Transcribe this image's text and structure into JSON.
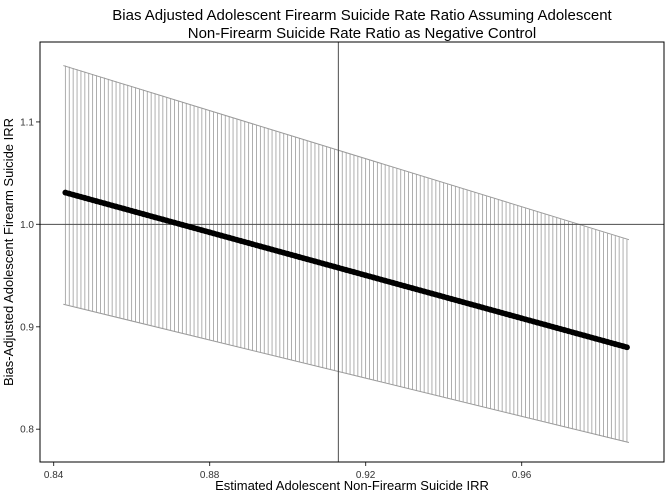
{
  "chart_data": {
    "type": "line",
    "title_lines": [
      "Bias Adjusted Adolescent Firearm Suicide Rate Ratio Assuming Adolescent",
      "Non-Firearm Suicide Rate Ratio as Negative Control"
    ],
    "xlabel": "Estimated Adolescent Non-Firearm Suicide IRR",
    "ylabel": "Bias-Adjusted Adolescent Firearm Suicide IRR",
    "xlim": [
      0.8365,
      0.9965
    ],
    "ylim": [
      0.768,
      1.178
    ],
    "x_ticks": [
      0.84,
      0.88,
      0.92,
      0.96
    ],
    "x_tick_labels": [
      "0.84",
      "0.88",
      "0.92",
      "0.96"
    ],
    "y_ticks": [
      0.8,
      0.9,
      1.0,
      1.1
    ],
    "y_tick_labels": [
      "0.8",
      "0.9",
      "1.0",
      "1.1"
    ],
    "reference_lines": {
      "vertical_x": 0.913,
      "horizontal_y": 1.0
    },
    "x_range": [
      0.843,
      0.987
    ],
    "n_points": 145,
    "point_estimate": {
      "start": 1.031,
      "end": 0.88
    },
    "upper_ci": {
      "start": 1.155,
      "end": 0.985
    },
    "lower_ci": {
      "start": 0.922,
      "end": 0.787
    },
    "colors": {
      "line": "#000000",
      "error_bars": "#9a9a9a",
      "reference": "#4d4d4d",
      "frame": "#000000"
    }
  }
}
